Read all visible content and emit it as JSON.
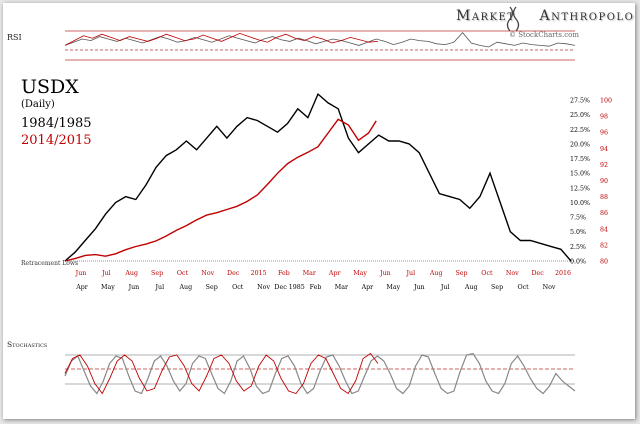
{
  "brand": {
    "title": "Market Anthropology",
    "source": "© StockCharts.com"
  },
  "chart_data": {
    "type": "line",
    "title": "USDX",
    "subtitle": "(Daily)",
    "series": [
      {
        "name": "1984/1985",
        "color": "#000000",
        "x": [
          0,
          0.02,
          0.04,
          0.06,
          0.08,
          0.1,
          0.12,
          0.14,
          0.16,
          0.18,
          0.2,
          0.22,
          0.24,
          0.26,
          0.28,
          0.3,
          0.32,
          0.34,
          0.36,
          0.38,
          0.4,
          0.42,
          0.44,
          0.46,
          0.48,
          0.5,
          0.52,
          0.54,
          0.56,
          0.58,
          0.6,
          0.62,
          0.64,
          0.66,
          0.68,
          0.7,
          0.72,
          0.74,
          0.76,
          0.78,
          0.8,
          0.82,
          0.84,
          0.86,
          0.88,
          0.9,
          0.92,
          0.94,
          0.96,
          0.98,
          1.0
        ],
        "y": [
          0,
          1.5,
          3.5,
          5.5,
          8,
          10,
          11,
          10.5,
          13,
          16,
          18,
          19,
          20.5,
          19,
          21,
          23,
          21,
          23,
          24.5,
          24,
          23,
          22,
          23.5,
          26,
          24.5,
          28.5,
          27,
          26,
          21,
          18.5,
          20,
          21.5,
          20.5,
          20.5,
          20,
          18.5,
          15,
          11.5,
          11,
          10.5,
          9,
          11,
          15,
          10,
          5,
          3.5,
          3.5,
          3,
          2.5,
          2,
          0
        ]
      },
      {
        "name": "2014/2015",
        "color": "#c00000",
        "x": [
          0,
          0.02,
          0.04,
          0.06,
          0.08,
          0.1,
          0.12,
          0.14,
          0.16,
          0.18,
          0.2,
          0.22,
          0.24,
          0.26,
          0.28,
          0.3,
          0.32,
          0.34,
          0.36,
          0.38,
          0.4,
          0.42,
          0.44,
          0.46,
          0.48,
          0.5,
          0.52,
          0.54,
          0.56,
          0.58,
          0.6,
          0.615
        ],
        "y": [
          80.0,
          80.3,
          80.7,
          80.8,
          80.6,
          80.9,
          81.4,
          81.8,
          82.1,
          82.5,
          83.1,
          83.8,
          84.4,
          85.1,
          85.7,
          86.0,
          86.4,
          86.8,
          87.4,
          88.2,
          89.5,
          90.9,
          92.1,
          92.9,
          93.5,
          94.2,
          95.9,
          97.6,
          96.9,
          95.0,
          95.9,
          97.4
        ]
      }
    ],
    "left_axis_labels": [
      "Apr",
      "May",
      "Jun",
      "Jul",
      "Aug",
      "Sep",
      "Oct",
      "Nov",
      "Dec 1985",
      "Feb",
      "Mar",
      "Apr",
      "May",
      "Jun",
      "Jul",
      "Aug",
      "Sep",
      "Oct",
      "Nov"
    ],
    "right_axis_labels": [
      "Jun",
      "Jul",
      "Aug",
      "Sep",
      "Oct",
      "Nov",
      "Dec",
      "2015",
      "Feb",
      "Mar",
      "Apr",
      "May",
      "Jun",
      "Jul",
      "Aug",
      "Sep",
      "Oct",
      "Nov",
      "Dec",
      "2016"
    ],
    "pct_axis": {
      "labels": [
        "27.5%",
        "25.0%",
        "22.5%",
        "20.0%",
        "17.5%",
        "15.0%",
        "12.5%",
        "10.0%",
        "7.5%",
        "5.0%",
        "2.5%",
        "0.0%"
      ],
      "ylim": [
        0,
        27.5
      ]
    },
    "usd_axis": {
      "labels": [
        "100",
        "98",
        "96",
        "94",
        "92",
        "90",
        "88",
        "86",
        "84",
        "82",
        "80"
      ],
      "ylim": [
        80,
        100
      ]
    },
    "annotations": [
      "Retracement Lows"
    ],
    "rsi": {
      "label": "RSI",
      "black": [
        52,
        56,
        60,
        58,
        63,
        60,
        57,
        61,
        58,
        55,
        59,
        63,
        60,
        56,
        58,
        62,
        59,
        56,
        60,
        64,
        61,
        58,
        55,
        60,
        63,
        59,
        57,
        61,
        58,
        54,
        57,
        60,
        58,
        55,
        52,
        56,
        60,
        57,
        53,
        56,
        60,
        58,
        57,
        54,
        53,
        56,
        68,
        55,
        52,
        50,
        56,
        54,
        52,
        55,
        53,
        52,
        51,
        55,
        54,
        52
      ],
      "red": [
        52,
        58,
        64,
        61,
        66,
        62,
        58,
        63,
        60,
        57,
        61,
        66,
        62,
        58,
        60,
        65,
        61,
        57,
        62,
        67,
        63,
        59,
        56,
        62,
        66,
        61,
        58,
        63,
        60,
        55,
        58,
        62,
        59,
        56,
        57
      ]
    },
    "stochastics": {
      "label": "Stochastics",
      "black": [
        50,
        80,
        90,
        60,
        30,
        15,
        40,
        75,
        90,
        85,
        50,
        20,
        15,
        45,
        80,
        90,
        70,
        40,
        20,
        35,
        75,
        90,
        85,
        55,
        25,
        15,
        40,
        80,
        90,
        65,
        30,
        15,
        20,
        55,
        85,
        90,
        70,
        35,
        15,
        25,
        60,
        88,
        92,
        70,
        40,
        15,
        20,
        50,
        80,
        90,
        80,
        55,
        25,
        15,
        30,
        70,
        92,
        88,
        55,
        25,
        15,
        20,
        60,
        92,
        95,
        75,
        40,
        20,
        15,
        35,
        75,
        90,
        70,
        45,
        25,
        15,
        30,
        55,
        40,
        30,
        20
      ],
      "red": [
        55,
        85,
        92,
        70,
        35,
        15,
        45,
        80,
        92,
        80,
        45,
        20,
        25,
        60,
        88,
        92,
        70,
        35,
        20,
        50,
        85,
        92,
        75,
        40,
        20,
        30,
        70,
        92,
        80,
        45,
        20,
        15,
        35,
        75,
        92,
        85,
        55,
        25,
        15,
        40,
        85,
        95,
        75
      ]
    }
  }
}
